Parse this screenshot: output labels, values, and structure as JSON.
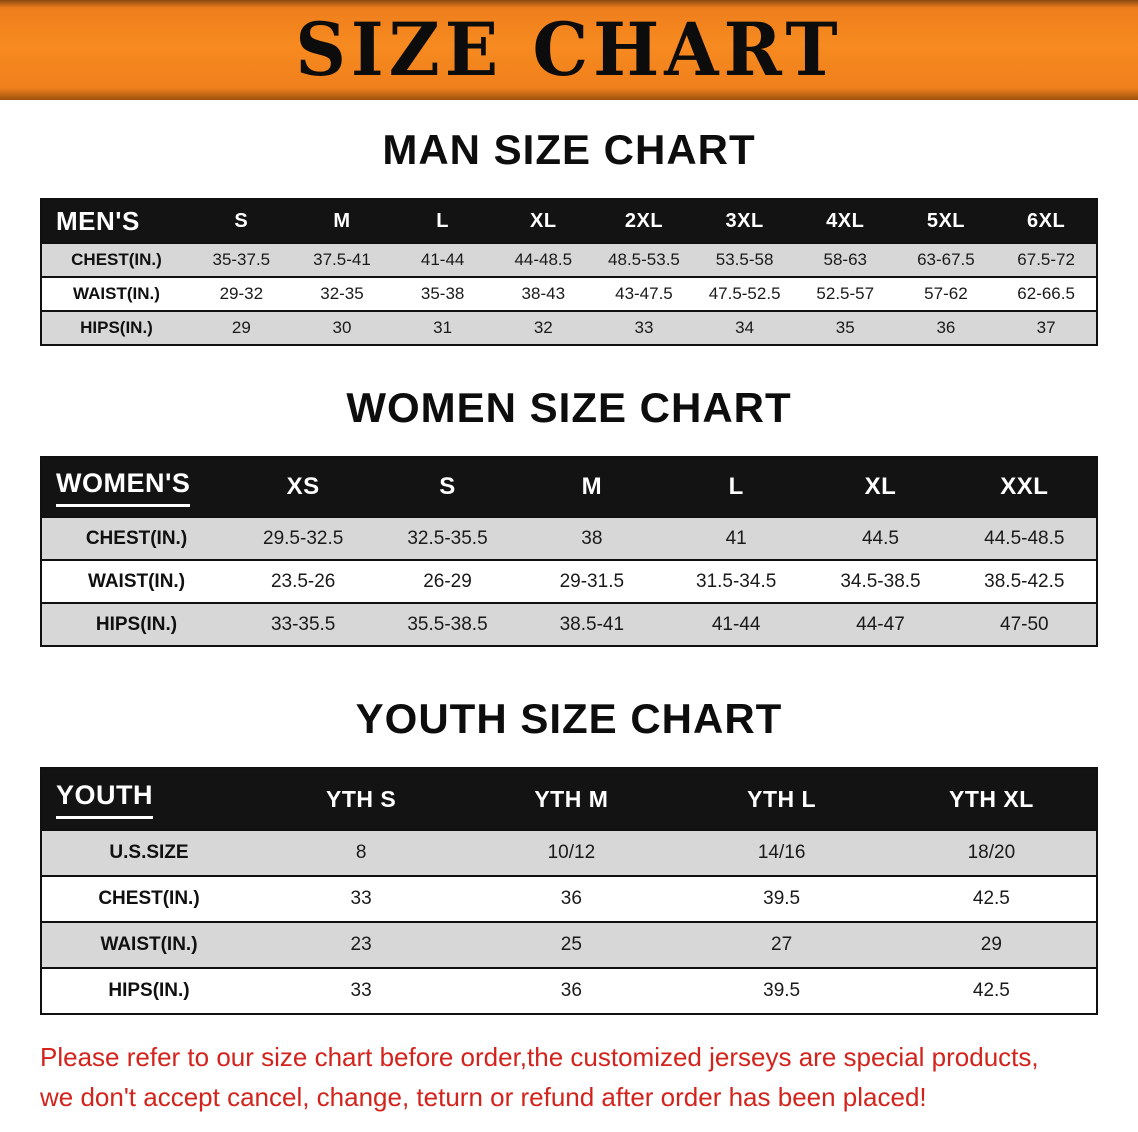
{
  "banner": {
    "title": "SIZE CHART"
  },
  "colors": {
    "banner_orange": "#f5861f",
    "header_black": "#131313",
    "row_gray": "#d7d7d7",
    "footer_red": "#d2231c"
  },
  "men": {
    "heading": "MAN SIZE CHART",
    "header_label": "MEN'S",
    "columns": [
      "S",
      "M",
      "L",
      "XL",
      "2XL",
      "3XL",
      "4XL",
      "5XL",
      "6XL"
    ],
    "rows": [
      {
        "label": "CHEST(IN.)",
        "values": [
          "35-37.5",
          "37.5-41",
          "41-44",
          "44-48.5",
          "48.5-53.5",
          "53.5-58",
          "58-63",
          "63-67.5",
          "67.5-72"
        ]
      },
      {
        "label": "WAIST(IN.)",
        "values": [
          "29-32",
          "32-35",
          "35-38",
          "38-43",
          "43-47.5",
          "47.5-52.5",
          "52.5-57",
          "57-62",
          "62-66.5"
        ]
      },
      {
        "label": "HIPS(IN.)",
        "values": [
          "29",
          "30",
          "31",
          "32",
          "33",
          "34",
          "35",
          "36",
          "37"
        ]
      }
    ]
  },
  "women": {
    "heading": "WOMEN SIZE CHART",
    "header_label": "WOMEN'S",
    "columns": [
      "XS",
      "S",
      "M",
      "L",
      "XL",
      "XXL"
    ],
    "rows": [
      {
        "label": "CHEST(IN.)",
        "values": [
          "29.5-32.5",
          "32.5-35.5",
          "38",
          "41",
          "44.5",
          "44.5-48.5"
        ]
      },
      {
        "label": "WAIST(IN.)",
        "values": [
          "23.5-26",
          "26-29",
          "29-31.5",
          "31.5-34.5",
          "34.5-38.5",
          "38.5-42.5"
        ]
      },
      {
        "label": "HIPS(IN.)",
        "values": [
          "33-35.5",
          "35.5-38.5",
          "38.5-41",
          "41-44",
          "44-47",
          "47-50"
        ]
      }
    ]
  },
  "youth": {
    "heading": "YOUTH SIZE CHART",
    "header_label": "YOUTH",
    "columns": [
      "YTH S",
      "YTH M",
      "YTH L",
      "YTH XL"
    ],
    "rows": [
      {
        "label": "U.S.SIZE",
        "values": [
          "8",
          "10/12",
          "14/16",
          "18/20"
        ]
      },
      {
        "label": "CHEST(IN.)",
        "values": [
          "33",
          "36",
          "39.5",
          "42.5"
        ]
      },
      {
        "label": "WAIST(IN.)",
        "values": [
          "23",
          "25",
          "27",
          "29"
        ]
      },
      {
        "label": "HIPS(IN.)",
        "values": [
          "33",
          "36",
          "39.5",
          "42.5"
        ]
      }
    ]
  },
  "footer": {
    "line1": "Please refer to our size chart before order,the customized jerseys are special products,",
    "line2": "we don't accept cancel, change, teturn or refund after order has been placed!"
  }
}
